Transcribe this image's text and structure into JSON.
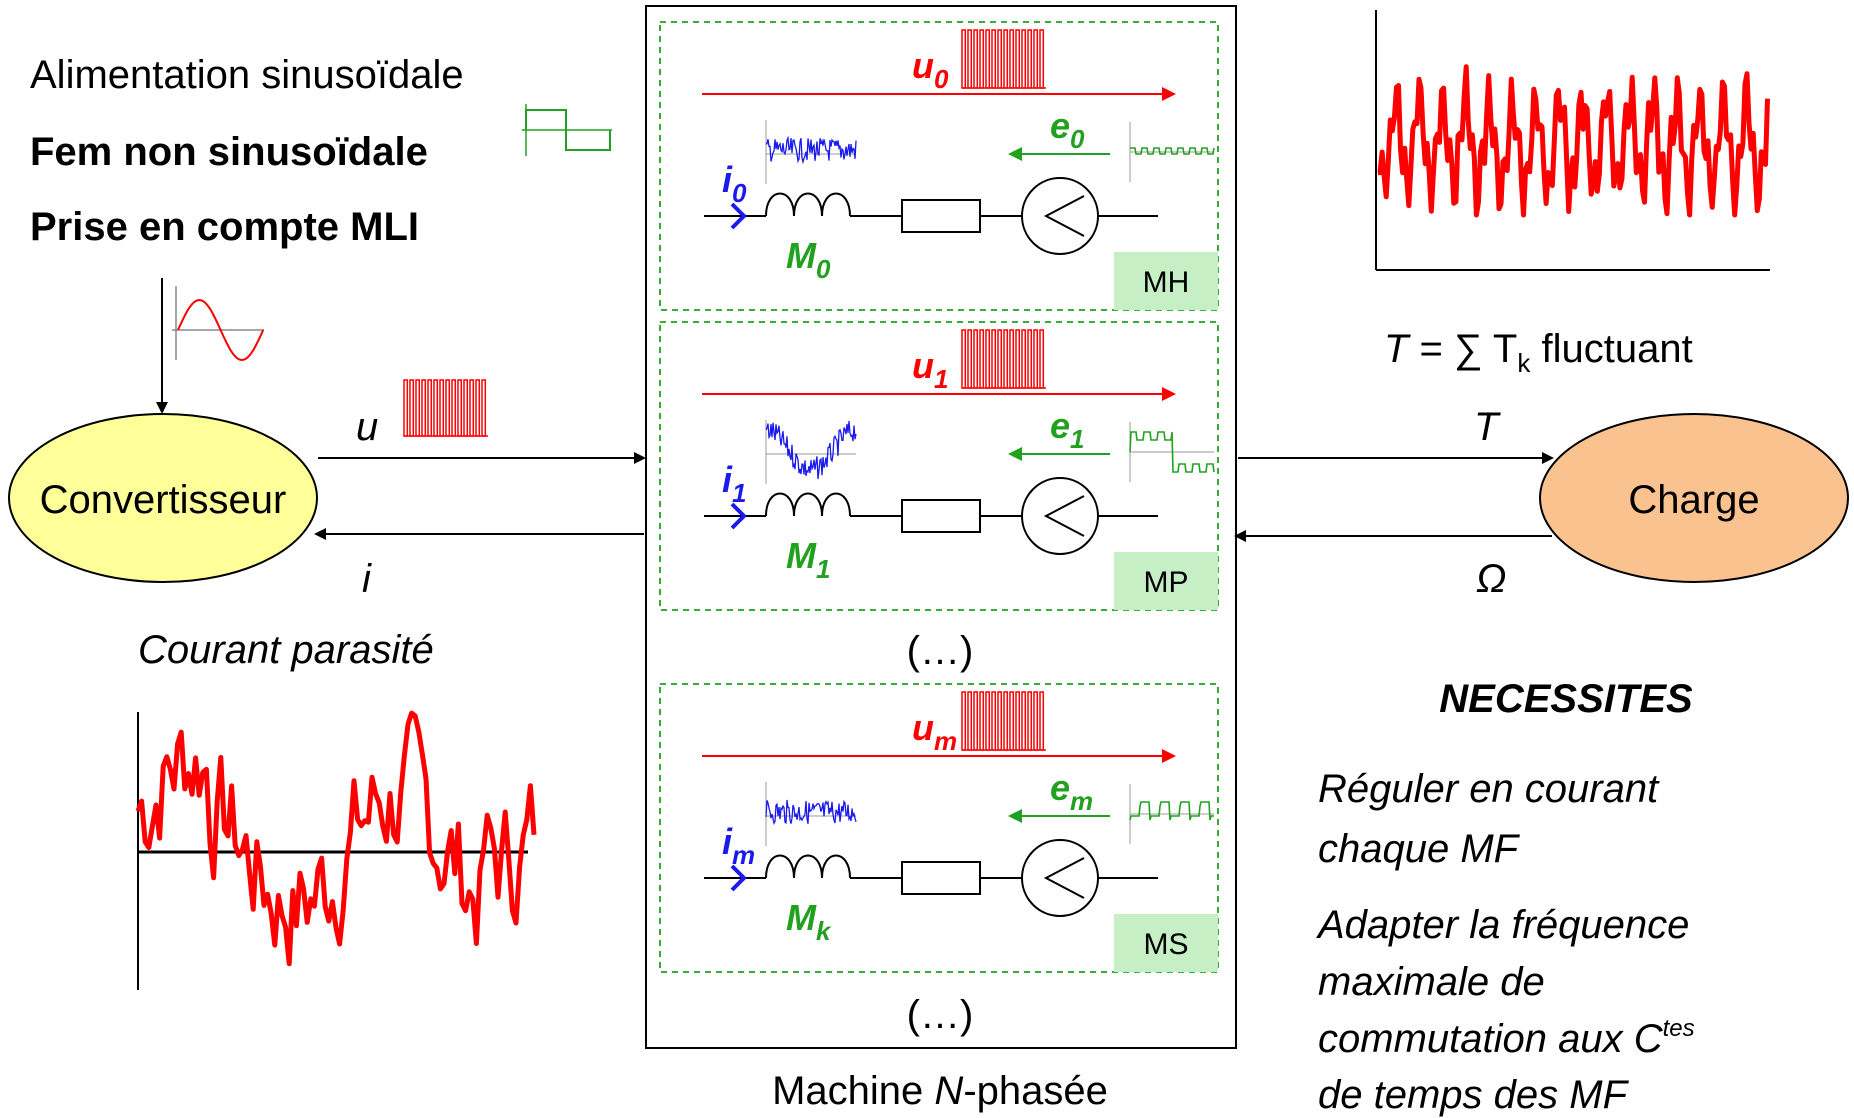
{
  "colors": {
    "voltage": "#ff0000",
    "emf": "#22a020",
    "current": "#1a1aee",
    "converter_fill": "#ffff99",
    "load_fill": "#f9c28e",
    "machine_tag_fill": "#c6efc6",
    "dashed_frame": "#22a020"
  },
  "left": {
    "line1": "Alimentation sinusoïdale",
    "line2": "Fem non sinusoïdale",
    "line3": "Prise en compte MLI",
    "parasitic_label": "Courant parasité"
  },
  "converter": {
    "label": "Convertisseur"
  },
  "load": {
    "label": "Charge"
  },
  "links": {
    "u_label": "u",
    "i_label": "i",
    "T_label": "T",
    "omega_label": "Ω"
  },
  "torque": {
    "T": "T",
    "eq": " = ∑ T",
    "sub": "k",
    "rest": " fluctuant"
  },
  "machine": {
    "caption_pre": "Machine ",
    "caption_N": "N",
    "caption_post": "-phasée",
    "ellipsis1": "(…)",
    "ellipsis2": "(…)",
    "sub_machines": [
      {
        "u": "u",
        "u_sub": "0",
        "e": "e",
        "e_sub": "0",
        "i": "i",
        "i_sub": "0",
        "M": "M",
        "M_sub": "0",
        "tag": "MH"
      },
      {
        "u": "u",
        "u_sub": "1",
        "e": "e",
        "e_sub": "1",
        "i": "i",
        "i_sub": "1",
        "M": "M",
        "M_sub": "1",
        "tag": "MP"
      },
      {
        "u": "u",
        "u_sub": "m",
        "e": "e",
        "e_sub": "m",
        "i": "i",
        "i_sub": "m",
        "M": "M",
        "M_sub": "k",
        "tag": "MS"
      }
    ]
  },
  "right": {
    "heading": "NECESSITES",
    "req1_line1": "Réguler en courant",
    "req1_line2": "chaque MF",
    "req2_line1": "Adapter la fréquence",
    "req2_line2": "maximale de",
    "req2_line3_pre": "commutation aux C",
    "req2_line3_sup": "tes",
    "req2_line4": "de temps des MF"
  }
}
